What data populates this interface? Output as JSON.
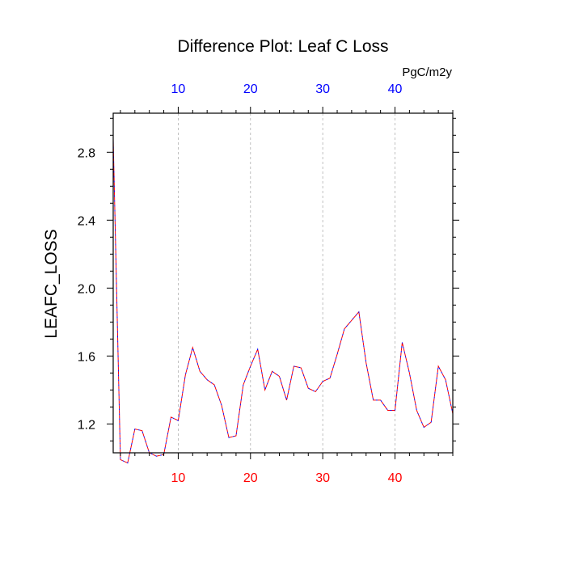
{
  "chart_data": {
    "type": "line",
    "title": "Difference Plot: Leaf C Loss",
    "units": "PgC/m2y",
    "xlabel": "",
    "ylabel": "LEAFC_LOSS",
    "xlim": [
      1,
      48
    ],
    "ylim": [
      1.03,
      3.03
    ],
    "x_ticks": [
      10,
      20,
      30,
      40
    ],
    "y_ticks": [
      1.2,
      1.6,
      2.0,
      2.4,
      2.8
    ],
    "y_tick_labels": [
      "1.2",
      "1.6",
      "2.0",
      "2.4",
      "2.8"
    ],
    "x_tick_labels_bottom": [
      "10",
      "20",
      "30",
      "40"
    ],
    "x_tick_labels_top": [
      "10",
      "20",
      "30",
      "40"
    ],
    "grid": "vertical-dashed",
    "colors": {
      "bottom_tick_labels": "#ff0000",
      "top_tick_labels": "#0000ff",
      "series_a": "#ff0000",
      "series_b": "#0000ff",
      "grid": "#b0b0b0"
    },
    "series": [
      {
        "color": "#ff0000",
        "x": [
          1,
          2,
          3,
          4,
          5,
          6,
          7,
          8,
          9,
          10,
          11,
          12,
          13,
          14,
          15,
          16,
          17,
          18,
          19,
          20,
          21,
          22,
          23,
          24,
          25,
          26,
          27,
          28,
          29,
          30,
          31,
          32,
          33,
          34,
          35,
          36,
          37,
          38,
          39,
          40,
          41,
          42,
          43,
          44,
          45,
          46,
          47,
          48
        ],
        "values": [
          2.88,
          0.99,
          0.97,
          1.17,
          1.16,
          1.03,
          1.01,
          1.02,
          1.24,
          1.22,
          1.49,
          1.65,
          1.51,
          1.46,
          1.43,
          1.31,
          1.12,
          1.13,
          1.43,
          1.54,
          1.64,
          1.4,
          1.51,
          1.48,
          1.34,
          1.54,
          1.53,
          1.41,
          1.39,
          1.45,
          1.47,
          1.61,
          1.76,
          1.81,
          1.86,
          1.56,
          1.34,
          1.34,
          1.28,
          1.28,
          1.68,
          1.5,
          1.28,
          1.18,
          1.21,
          1.54,
          1.46,
          1.26
        ]
      },
      {
        "color": "#0000ff",
        "x": [
          1,
          2,
          3,
          4,
          5,
          6,
          7,
          8,
          9,
          10,
          11,
          12,
          13,
          14,
          15,
          16,
          17,
          18,
          19,
          20,
          21,
          22,
          23,
          24,
          25,
          26,
          27,
          28,
          29,
          30,
          31,
          32,
          33,
          34,
          35,
          36,
          37,
          38,
          39,
          40,
          41,
          42,
          43,
          44,
          45,
          46,
          47,
          48
        ],
        "values": [
          2.88,
          0.99,
          0.97,
          1.17,
          1.16,
          1.03,
          1.01,
          1.02,
          1.24,
          1.22,
          1.49,
          1.65,
          1.51,
          1.46,
          1.43,
          1.31,
          1.12,
          1.13,
          1.43,
          1.54,
          1.64,
          1.4,
          1.51,
          1.48,
          1.34,
          1.54,
          1.53,
          1.41,
          1.39,
          1.45,
          1.47,
          1.61,
          1.76,
          1.81,
          1.86,
          1.56,
          1.34,
          1.34,
          1.28,
          1.28,
          1.68,
          1.5,
          1.28,
          1.18,
          1.21,
          1.54,
          1.46,
          1.26
        ]
      }
    ]
  }
}
